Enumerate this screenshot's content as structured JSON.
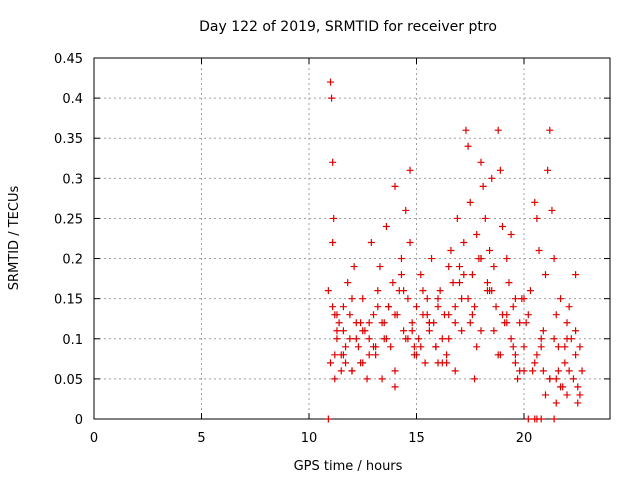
{
  "chart_data": {
    "type": "scatter",
    "title": "Day 122 of 2019, SRMTID for receiver ptro",
    "xlabel": "GPS time / hours",
    "ylabel": "SRMTID / TECUs",
    "xlim": [
      0,
      24
    ],
    "ylim": [
      0,
      0.45
    ],
    "xticks": [
      0,
      5,
      10,
      15,
      20
    ],
    "xtick_labels": [
      "0",
      "5",
      "10",
      "15",
      "20"
    ],
    "yticks": [
      0,
      0.05,
      0.1,
      0.15,
      0.2,
      0.25,
      0.3,
      0.35,
      0.4,
      0.45
    ],
    "ytick_labels": [
      "0",
      "0.05",
      "0.1",
      "0.15",
      "0.2",
      "0.25",
      "0.3",
      "0.35",
      "0.4",
      "0.45"
    ],
    "grid": true,
    "marker": "+",
    "series": [
      {
        "name": "SRMTID",
        "color": "#e00000",
        "x": [
          10.9,
          11.0,
          11.05,
          11.1,
          11.1,
          11.15,
          11.2,
          11.3,
          11.4,
          11.5,
          11.6,
          11.7,
          11.8,
          11.9,
          12.0,
          12.1,
          12.2,
          12.3,
          12.4,
          12.5,
          12.6,
          12.7,
          12.8,
          12.9,
          13.0,
          13.1,
          13.2,
          13.3,
          13.4,
          13.5,
          13.6,
          13.7,
          13.8,
          13.9,
          14.0,
          14.1,
          14.2,
          14.3,
          14.4,
          14.5,
          14.6,
          14.7,
          14.8,
          14.9,
          15.0,
          15.1,
          15.2,
          15.3,
          15.4,
          15.5,
          15.6,
          15.7,
          15.8,
          15.9,
          16.0,
          16.1,
          16.2,
          16.3,
          16.4,
          16.5,
          16.6,
          16.7,
          16.8,
          16.9,
          17.0,
          17.1,
          17.2,
          17.3,
          17.4,
          17.5,
          17.6,
          17.7,
          17.8,
          17.9,
          18.0,
          18.1,
          18.2,
          18.3,
          18.4,
          18.5,
          18.6,
          18.7,
          18.8,
          18.9,
          19.0,
          19.1,
          19.2,
          19.3,
          19.4,
          19.5,
          19.6,
          19.7,
          19.8,
          19.9,
          20.0,
          20.1,
          20.2,
          20.5,
          20.6,
          20.7,
          20.8,
          20.9,
          21.0,
          21.1,
          21.2,
          21.3,
          21.4,
          21.5,
          21.6,
          21.7,
          21.8,
          21.9,
          22.0,
          22.1,
          22.2,
          22.3,
          22.4,
          22.5,
          22.6,
          22.7,
          11.1,
          11.2,
          11.3,
          11.5,
          11.7,
          11.9,
          12.2,
          12.5,
          12.8,
          13.1,
          13.4,
          13.7,
          14.0,
          14.3,
          14.6,
          14.7,
          14.9,
          15.3,
          15.6,
          15.9,
          16.2,
          16.5,
          16.8,
          17.1,
          17.4,
          17.7,
          17.8,
          18.0,
          18.3,
          18.6,
          18.9,
          19.2,
          19.4,
          19.6,
          19.8,
          20.3,
          20.6,
          20.9,
          21.2,
          21.4,
          21.5,
          21.7,
          21.9,
          22.1,
          22.4,
          22.6,
          11.0,
          11.3,
          11.6,
          12.0,
          12.4,
          12.8,
          13.2,
          13.6,
          14.0,
          14.4,
          14.8,
          15.2,
          15.6,
          16.0,
          16.4,
          16.8,
          17.2,
          17.6,
          18.0,
          18.4,
          18.8,
          19.2,
          19.6,
          20.0,
          20.4,
          20.8,
          21.2,
          21.6,
          22.0,
          22.4,
          11.2,
          11.6,
          12.0,
          12.5,
          13.0,
          13.5,
          14.0,
          14.5,
          15.0,
          15.5,
          16.0,
          16.5,
          17.0,
          17.5,
          18.0,
          18.5,
          19.0,
          19.5,
          20.0,
          20.5,
          21.0,
          21.5,
          22.0,
          22.5,
          10.9,
          20.2,
          20.5,
          20.6,
          20.8,
          21.4
        ],
        "y": [
          0.16,
          0.42,
          0.4,
          0.32,
          0.22,
          0.25,
          0.13,
          0.1,
          0.12,
          0.08,
          0.14,
          0.07,
          0.17,
          0.1,
          0.06,
          0.19,
          0.12,
          0.09,
          0.07,
          0.15,
          0.11,
          0.05,
          0.1,
          0.22,
          0.13,
          0.08,
          0.16,
          0.19,
          0.12,
          0.1,
          0.24,
          0.14,
          0.09,
          0.17,
          0.29,
          0.13,
          0.16,
          0.2,
          0.11,
          0.26,
          0.15,
          0.31,
          0.12,
          0.09,
          0.14,
          0.1,
          0.18,
          0.13,
          0.07,
          0.15,
          0.11,
          0.2,
          0.12,
          0.09,
          0.14,
          0.16,
          0.1,
          0.13,
          0.08,
          0.19,
          0.21,
          0.17,
          0.12,
          0.25,
          0.19,
          0.15,
          0.22,
          0.36,
          0.34,
          0.27,
          0.18,
          0.14,
          0.23,
          0.2,
          0.32,
          0.29,
          0.25,
          0.16,
          0.21,
          0.3,
          0.19,
          0.14,
          0.36,
          0.31,
          0.24,
          0.12,
          0.2,
          0.17,
          0.1,
          0.14,
          0.08,
          0.05,
          0.12,
          0.15,
          0.09,
          0.12,
          0.13,
          0.27,
          0.25,
          0.21,
          0.1,
          0.06,
          0.18,
          0.31,
          0.36,
          0.26,
          0.2,
          0.13,
          0.09,
          0.15,
          0.04,
          0.07,
          0.12,
          0.06,
          0.1,
          0.05,
          0.08,
          0.04,
          0.03,
          0.06,
          0.14,
          0.08,
          0.11,
          0.06,
          0.09,
          0.13,
          0.1,
          0.07,
          0.12,
          0.09,
          0.05,
          0.14,
          0.06,
          0.18,
          0.1,
          0.22,
          0.08,
          0.16,
          0.12,
          0.09,
          0.07,
          0.13,
          0.06,
          0.11,
          0.15,
          0.05,
          0.09,
          0.2,
          0.17,
          0.11,
          0.08,
          0.13,
          0.23,
          0.15,
          0.06,
          0.16,
          0.08,
          0.11,
          0.05,
          0.1,
          0.02,
          0.04,
          0.09,
          0.14,
          0.18,
          0.09,
          0.07,
          0.13,
          0.11,
          0.15,
          0.12,
          0.08,
          0.14,
          0.1,
          0.13,
          0.16,
          0.11,
          0.09,
          0.12,
          0.15,
          0.07,
          0.14,
          0.18,
          0.13,
          0.11,
          0.16,
          0.08,
          0.12,
          0.07,
          0.15,
          0.06,
          0.09,
          0.05,
          0.06,
          0.1,
          0.11,
          0.05,
          0.08,
          0.06,
          0.11,
          0.09,
          0.12,
          0.04,
          0.1,
          0.08,
          0.13,
          0.07,
          0.1,
          0.17,
          0.12,
          0.2,
          0.16,
          0.13,
          0.09,
          0.06,
          0.07,
          0.03,
          0.05,
          0.03,
          0.02,
          0.0,
          0.0,
          0.0,
          0.0,
          0.0,
          0.0
        ]
      }
    ]
  }
}
